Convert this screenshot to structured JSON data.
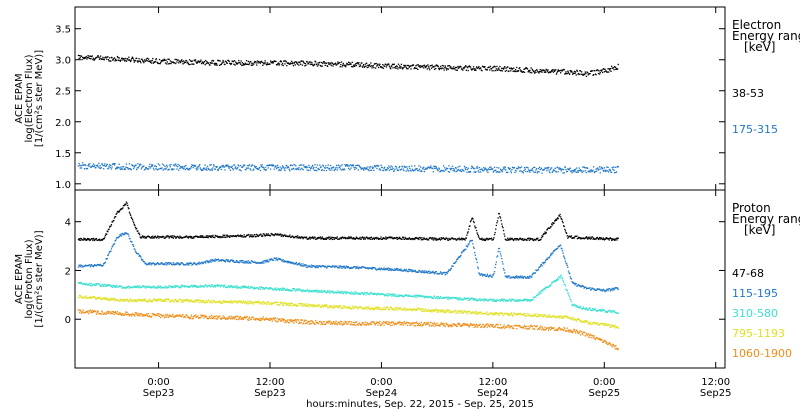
{
  "x_axis": {
    "ticks": [
      {
        "time": 24,
        "line1": "0:00",
        "line2": "Sep23"
      },
      {
        "time": 36,
        "line1": "12:00",
        "line2": "Sep23"
      },
      {
        "time": 48,
        "line1": "0:00",
        "line2": "Sep24"
      },
      {
        "time": 60,
        "line1": "12:00",
        "line2": "Sep24"
      },
      {
        "time": 72,
        "line1": "0:00",
        "line2": "Sep25"
      },
      {
        "time": 84,
        "line1": "12:00",
        "line2": "Sep25"
      }
    ],
    "title": "hours:minutes, Sep. 22, 2015 - Sep. 25, 2015"
  },
  "chart_data": [
    {
      "type": "scatter",
      "panel": "electron",
      "ylabel_lines": [
        "ACE EPAM",
        "log(Electron Flux)",
        "[1/(cm²s ster MeV)]"
      ],
      "xlim_hours": [
        15,
        85
      ],
      "ylim": [
        0.9,
        3.85
      ],
      "yticks": [
        1.0,
        1.5,
        2.0,
        2.5,
        3.0,
        3.5
      ],
      "ytick_labels": [
        "1.0",
        "1.5",
        "2.0",
        "2.5",
        "3.0",
        "3.5"
      ],
      "legend_title": [
        "Electron",
        "Energy ranges",
        "[keV]"
      ],
      "series": [
        {
          "name": "38-53",
          "color": "#000000",
          "range_hours": [
            15.3,
            73.5
          ],
          "points": [
            [
              15.3,
              3.05
            ],
            [
              20,
              3.02
            ],
            [
              25,
              2.98
            ],
            [
              30,
              2.96
            ],
            [
              35,
              2.96
            ],
            [
              40,
              2.95
            ],
            [
              45,
              2.93
            ],
            [
              50,
              2.9
            ],
            [
              55,
              2.88
            ],
            [
              60,
              2.87
            ],
            [
              64,
              2.84
            ],
            [
              66,
              2.81
            ],
            [
              68,
              2.82
            ],
            [
              70,
              2.78
            ],
            [
              72,
              2.83
            ],
            [
              73.5,
              2.9
            ]
          ],
          "noise": 0.04
        },
        {
          "name": "175-315",
          "color": "#1f77c8",
          "range_hours": [
            15.3,
            73.5
          ],
          "points": [
            [
              15.3,
              1.3
            ],
            [
              25,
              1.28
            ],
            [
              35,
              1.27
            ],
            [
              45,
              1.27
            ],
            [
              55,
              1.25
            ],
            [
              65,
              1.23
            ],
            [
              73.5,
              1.24
            ]
          ],
          "noise": 0.05
        }
      ]
    },
    {
      "type": "scatter",
      "panel": "proton",
      "ylabel_lines": [
        "ACE EPAM",
        "log(Proton Flux)",
        "[1/(cm²s ster MeV)]"
      ],
      "xlim_hours": [
        15,
        85
      ],
      "ylim": [
        -2.0,
        5.3
      ],
      "yticks": [
        0,
        2,
        4
      ],
      "ytick_labels": [
        "0",
        "2",
        "4"
      ],
      "legend_title": [
        "Proton",
        "Energy ranges",
        "[keV]"
      ],
      "series": [
        {
          "name": "47-68",
          "color": "#000000",
          "range_hours": [
            15.3,
            73.5
          ],
          "points": [
            [
              15.3,
              3.3
            ],
            [
              18,
              3.3
            ],
            [
              19.5,
              4.4
            ],
            [
              20.5,
              4.8
            ],
            [
              21.2,
              4.0
            ],
            [
              22,
              3.4
            ],
            [
              28,
              3.4
            ],
            [
              34,
              3.45
            ],
            [
              36.5,
              3.5
            ],
            [
              40,
              3.35
            ],
            [
              50,
              3.35
            ],
            [
              57,
              3.3
            ],
            [
              57.7,
              4.2
            ],
            [
              58.5,
              3.3
            ],
            [
              60,
              3.3
            ],
            [
              60.6,
              4.4
            ],
            [
              61.3,
              3.3
            ],
            [
              65,
              3.3
            ],
            [
              66.5,
              4.0
            ],
            [
              67.2,
              4.3
            ],
            [
              68,
              3.4
            ],
            [
              73.5,
              3.3
            ]
          ],
          "noise": 0.05
        },
        {
          "name": "115-195",
          "color": "#1f77c8",
          "range_hours": [
            15.3,
            73.5
          ],
          "points": [
            [
              15.3,
              2.2
            ],
            [
              18,
              2.25
            ],
            [
              19.5,
              3.4
            ],
            [
              20.5,
              3.6
            ],
            [
              21.5,
              2.8
            ],
            [
              22.5,
              2.3
            ],
            [
              28,
              2.3
            ],
            [
              30,
              2.45
            ],
            [
              35,
              2.35
            ],
            [
              36.5,
              2.5
            ],
            [
              40,
              2.2
            ],
            [
              45,
              2.15
            ],
            [
              50,
              2.05
            ],
            [
              55,
              1.9
            ],
            [
              57.7,
              3.3
            ],
            [
              58.5,
              1.85
            ],
            [
              60,
              1.8
            ],
            [
              60.6,
              3.0
            ],
            [
              61.3,
              1.75
            ],
            [
              64,
              1.75
            ],
            [
              67.2,
              3.1
            ],
            [
              68.5,
              1.5
            ],
            [
              70,
              1.3
            ],
            [
              72,
              1.2
            ],
            [
              73.5,
              1.3
            ]
          ],
          "noise": 0.05
        },
        {
          "name": "310-580",
          "color": "#3ae0d0",
          "range_hours": [
            15.3,
            73.5
          ],
          "points": [
            [
              15.3,
              1.5
            ],
            [
              20,
              1.35
            ],
            [
              25,
              1.35
            ],
            [
              30,
              1.4
            ],
            [
              35,
              1.3
            ],
            [
              40,
              1.2
            ],
            [
              45,
              1.1
            ],
            [
              50,
              1.0
            ],
            [
              55,
              0.9
            ],
            [
              60,
              0.8
            ],
            [
              64,
              0.8
            ],
            [
              67.3,
              1.8
            ],
            [
              68.5,
              0.6
            ],
            [
              70,
              0.45
            ],
            [
              73.5,
              0.3
            ]
          ],
          "noise": 0.05
        },
        {
          "name": "795-1193",
          "color": "#e0e020",
          "range_hours": [
            15.3,
            73.5
          ],
          "points": [
            [
              15.3,
              0.95
            ],
            [
              20,
              0.8
            ],
            [
              25,
              0.8
            ],
            [
              30,
              0.75
            ],
            [
              35,
              0.7
            ],
            [
              40,
              0.6
            ],
            [
              45,
              0.5
            ],
            [
              50,
              0.45
            ],
            [
              55,
              0.35
            ],
            [
              60,
              0.25
            ],
            [
              64,
              0.2
            ],
            [
              68,
              0.1
            ],
            [
              70,
              -0.1
            ],
            [
              73.5,
              -0.3
            ]
          ],
          "noise": 0.06
        },
        {
          "name": "1060-1900",
          "color": "#f08c14",
          "range_hours": [
            15.3,
            73.5
          ],
          "points": [
            [
              15.3,
              0.35
            ],
            [
              20,
              0.25
            ],
            [
              25,
              0.15
            ],
            [
              30,
              0.1
            ],
            [
              35,
              0.05
            ],
            [
              40,
              -0.1
            ],
            [
              45,
              -0.15
            ],
            [
              50,
              -0.15
            ],
            [
              55,
              -0.2
            ],
            [
              60,
              -0.25
            ],
            [
              64,
              -0.3
            ],
            [
              68,
              -0.4
            ],
            [
              70,
              -0.6
            ],
            [
              72,
              -0.9
            ],
            [
              73.5,
              -1.2
            ]
          ],
          "noise": 0.08
        }
      ]
    }
  ]
}
